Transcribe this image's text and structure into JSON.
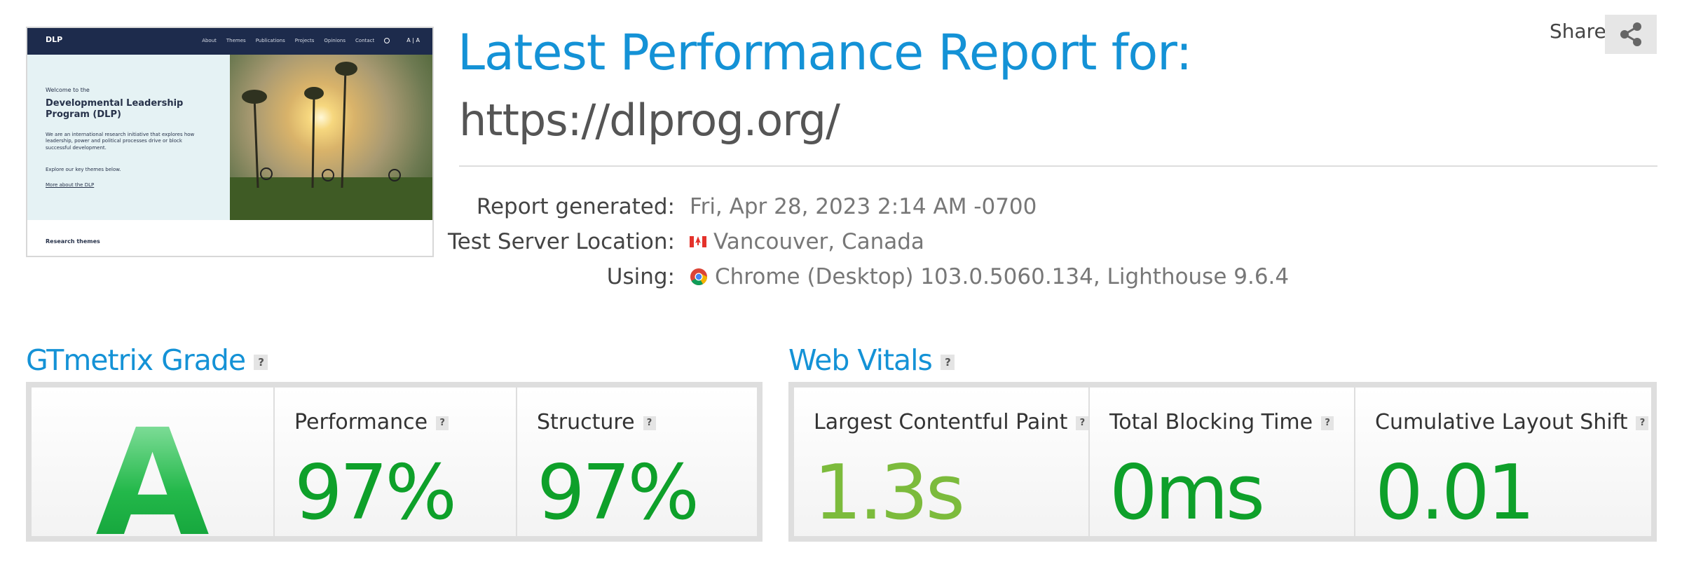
{
  "thumbnail": {
    "logo": "DLP",
    "nav": [
      "About",
      "Themes",
      "Publications",
      "Projects",
      "Opinions",
      "Contact"
    ],
    "font_toggle": "A | A",
    "intro": "Welcome to the",
    "heading": "Developmental Leadership Program (DLP)",
    "body": "We are an international research initiative that explores how leadership, power and political processes drive or block successful development.",
    "cta": "Explore our key themes below.",
    "link": "More about the DLP",
    "section": "Research themes"
  },
  "header": {
    "title": "Latest Performance Report for:",
    "url": "https://dlprog.org/",
    "share": "Share"
  },
  "details": [
    {
      "label": "Report generated:",
      "value": "Fri, Apr 28, 2023 2:14 AM -0700"
    },
    {
      "label": "Test Server Location:",
      "value": "Vancouver, Canada"
    },
    {
      "label": "Using:",
      "value": "Chrome (Desktop) 103.0.5060.134, Lighthouse 9.6.4"
    }
  ],
  "help": "?",
  "grade": {
    "heading": "GTmetrix Grade",
    "grade": "A",
    "metrics": [
      {
        "label": "Performance",
        "value": "97%"
      },
      {
        "label": "Structure",
        "value": "97%"
      }
    ]
  },
  "web_vitals": {
    "heading": "Web Vitals",
    "metrics": [
      {
        "label": "Largest Contentful Paint",
        "value": "1.3s"
      },
      {
        "label": "Total Blocking Time",
        "value": "0ms"
      },
      {
        "label": "Cumulative Layout Shift",
        "value": "0.01"
      }
    ]
  }
}
